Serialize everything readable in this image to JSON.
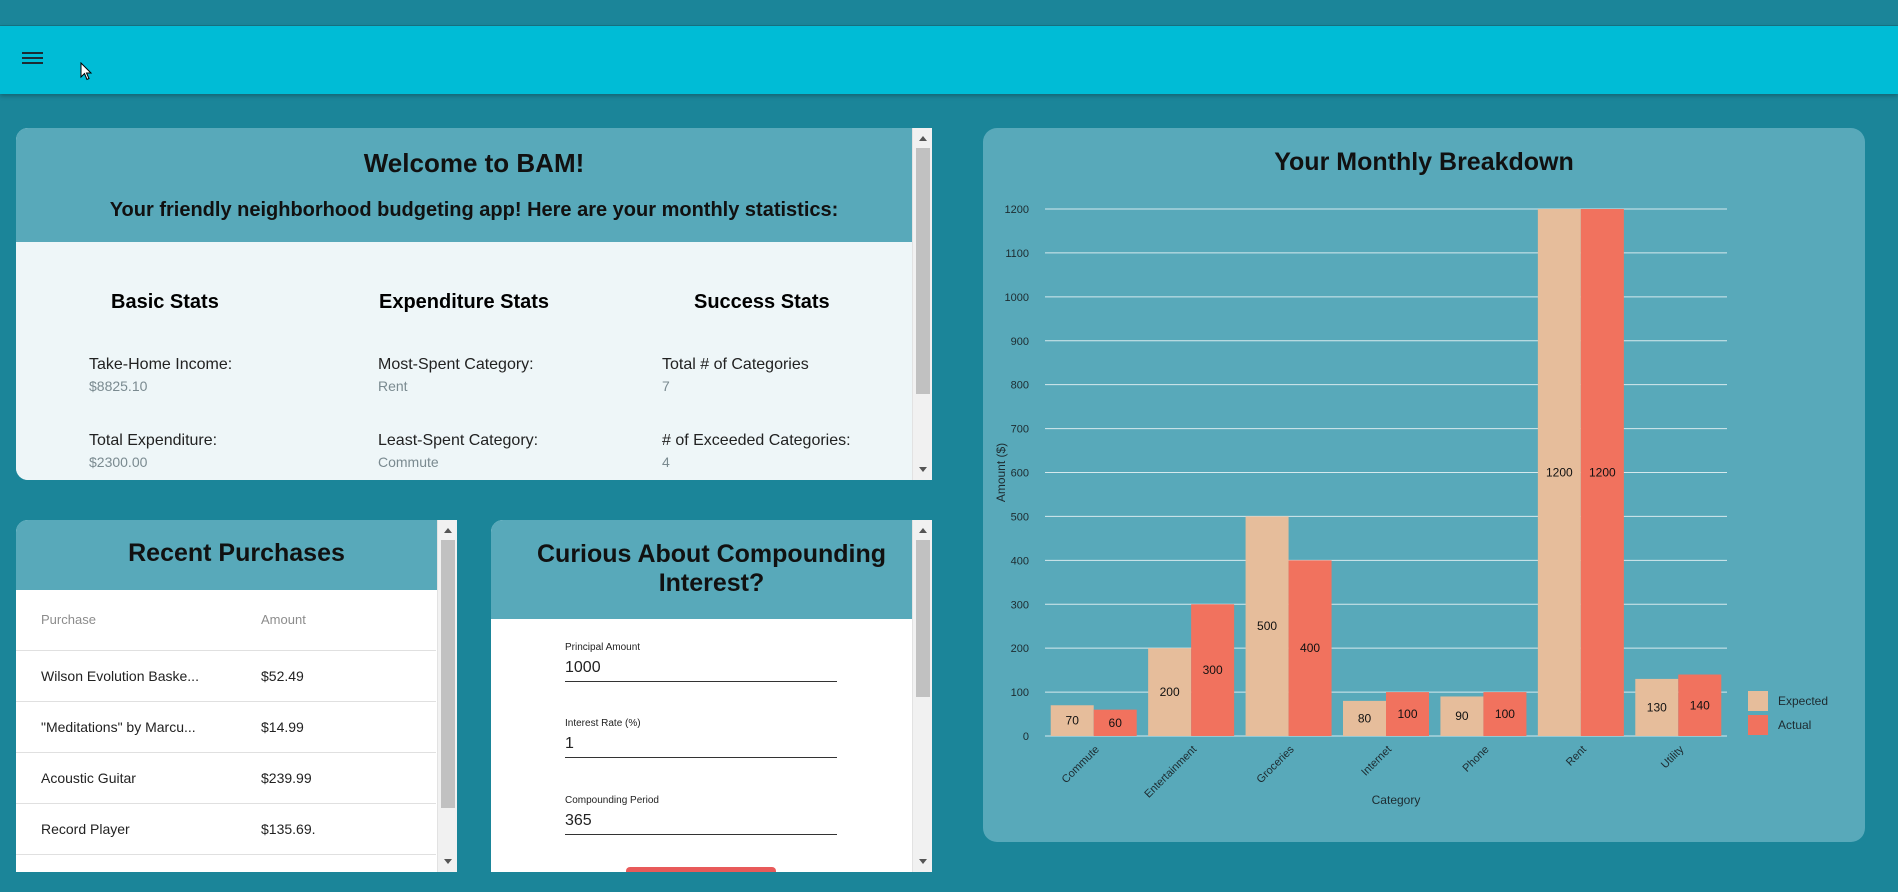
{
  "welcome": {
    "title": "Welcome to BAM!",
    "subtitle": "Your friendly neighborhood budgeting app! Here are your monthly statistics:",
    "columns": [
      {
        "heading": "Basic Stats",
        "items": [
          {
            "label": "Take-Home Income:",
            "value": "$8825.10"
          },
          {
            "label": "Total Expenditure:",
            "value": "$2300.00"
          }
        ]
      },
      {
        "heading": "Expenditure Stats",
        "items": [
          {
            "label": "Most-Spent Category:",
            "value": "Rent"
          },
          {
            "label": "Least-Spent Category:",
            "value": "Commute"
          }
        ]
      },
      {
        "heading": "Success Stats",
        "items": [
          {
            "label": "Total # of Categories",
            "value": "7"
          },
          {
            "label": "# of Exceeded Categories:",
            "value": "4"
          }
        ]
      }
    ]
  },
  "purchases": {
    "title": "Recent Purchases",
    "columns": [
      "Purchase",
      "Amount"
    ],
    "rows": [
      {
        "name": "Wilson Evolution Baske...",
        "amount": "$52.49"
      },
      {
        "name": "\"Meditations\" by Marcu...",
        "amount": "$14.99"
      },
      {
        "name": "Acoustic Guitar",
        "amount": "$239.99"
      },
      {
        "name": "Record Player",
        "amount": "$135.69."
      }
    ]
  },
  "compound": {
    "title": "Curious About Compounding Interest?",
    "fields": [
      {
        "label": "Principal Amount",
        "value": "1000"
      },
      {
        "label": "Interest Rate (%)",
        "value": "1"
      },
      {
        "label": "Compounding Period",
        "value": "365"
      }
    ]
  },
  "chart_data": {
    "type": "bar",
    "title": "Your Monthly Breakdown",
    "xlabel": "Category",
    "ylabel": "Amount ($)",
    "ylim": [
      0,
      1200
    ],
    "yticks": [
      0,
      100,
      200,
      300,
      400,
      500,
      600,
      700,
      800,
      900,
      1000,
      1100,
      1200
    ],
    "categories": [
      "Commute",
      "Entertainment",
      "Groceries",
      "Internet",
      "Phone",
      "Rent",
      "Utility"
    ],
    "series": [
      {
        "name": "Expected",
        "color": "#e6bd9b",
        "values": [
          70,
          200,
          500,
          80,
          90,
          1200,
          130
        ]
      },
      {
        "name": "Actual",
        "color": "#f1725e",
        "values": [
          60,
          300,
          400,
          100,
          100,
          1200,
          140
        ]
      }
    ],
    "legend": "right",
    "grid": true
  },
  "colors": {
    "background": "#1b8599",
    "appbar": "#00bcd6",
    "card_header": "#58a9ba"
  }
}
